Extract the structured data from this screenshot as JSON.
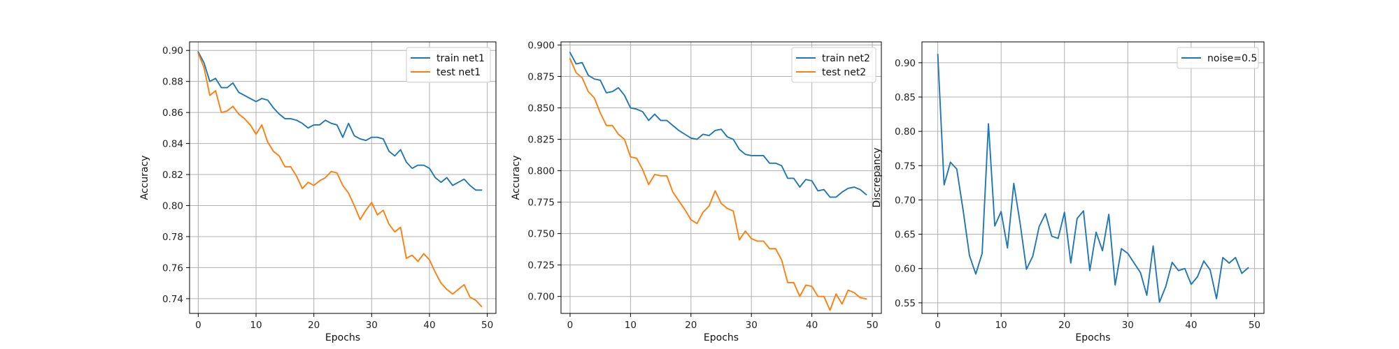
{
  "chart_data": [
    {
      "type": "line",
      "xlabel": "Epochs",
      "ylabel": "Accuracy",
      "xlim": [
        -1.5,
        51.5
      ],
      "ylim": [
        0.7305,
        0.9055
      ],
      "xticks": [
        0,
        10,
        20,
        30,
        40,
        50
      ],
      "yticks": [
        0.74,
        0.76,
        0.78,
        0.8,
        0.82,
        0.84,
        0.86,
        0.88,
        0.9
      ],
      "ytick_labels": [
        "0.74",
        "0.76",
        "0.78",
        "0.80",
        "0.82",
        "0.84",
        "0.86",
        "0.88",
        "0.90"
      ],
      "grid": true,
      "legend_position": "top-right",
      "series": [
        {
          "name": "train net1",
          "color": "#1f77b4",
          "values": [
            0.899,
            0.892,
            0.88,
            0.882,
            0.876,
            0.876,
            0.879,
            0.873,
            0.871,
            0.869,
            0.867,
            0.869,
            0.868,
            0.863,
            0.859,
            0.856,
            0.856,
            0.855,
            0.853,
            0.85,
            0.852,
            0.852,
            0.855,
            0.853,
            0.852,
            0.844,
            0.853,
            0.845,
            0.843,
            0.842,
            0.844,
            0.844,
            0.843,
            0.835,
            0.832,
            0.836,
            0.828,
            0.824,
            0.826,
            0.826,
            0.824,
            0.818,
            0.815,
            0.818,
            0.813,
            0.815,
            0.817,
            0.813,
            0.81,
            0.81
          ]
        },
        {
          "name": "test net1",
          "color": "#ff7f0e",
          "values": [
            0.898,
            0.889,
            0.871,
            0.874,
            0.86,
            0.861,
            0.864,
            0.859,
            0.856,
            0.852,
            0.846,
            0.852,
            0.841,
            0.835,
            0.832,
            0.825,
            0.825,
            0.819,
            0.811,
            0.815,
            0.813,
            0.816,
            0.818,
            0.822,
            0.821,
            0.813,
            0.808,
            0.8,
            0.791,
            0.797,
            0.802,
            0.794,
            0.797,
            0.788,
            0.783,
            0.786,
            0.766,
            0.768,
            0.764,
            0.769,
            0.765,
            0.757,
            0.75,
            0.746,
            0.743,
            0.746,
            0.749,
            0.741,
            0.739,
            0.735
          ]
        }
      ]
    },
    {
      "type": "line",
      "xlabel": "Epochs",
      "ylabel": "Accuracy",
      "xlim": [
        -1.5,
        51.5
      ],
      "ylim": [
        0.6865,
        0.9025
      ],
      "xticks": [
        0,
        10,
        20,
        30,
        40,
        50
      ],
      "yticks": [
        0.7,
        0.725,
        0.75,
        0.775,
        0.8,
        0.825,
        0.85,
        0.875,
        0.9
      ],
      "ytick_labels": [
        "0.700",
        "0.725",
        "0.750",
        "0.775",
        "0.800",
        "0.825",
        "0.850",
        "0.875",
        "0.900"
      ],
      "grid": true,
      "legend_position": "top-right",
      "series": [
        {
          "name": "train net2",
          "color": "#1f77b4",
          "values": [
            0.894,
            0.885,
            0.886,
            0.876,
            0.873,
            0.872,
            0.862,
            0.863,
            0.866,
            0.86,
            0.85,
            0.849,
            0.847,
            0.84,
            0.845,
            0.84,
            0.84,
            0.836,
            0.832,
            0.829,
            0.826,
            0.825,
            0.829,
            0.828,
            0.832,
            0.833,
            0.827,
            0.825,
            0.817,
            0.813,
            0.812,
            0.812,
            0.812,
            0.806,
            0.806,
            0.804,
            0.794,
            0.794,
            0.787,
            0.793,
            0.792,
            0.784,
            0.785,
            0.779,
            0.779,
            0.783,
            0.786,
            0.787,
            0.785,
            0.781
          ]
        },
        {
          "name": "test net2",
          "color": "#ff7f0e",
          "values": [
            0.889,
            0.878,
            0.874,
            0.863,
            0.858,
            0.846,
            0.836,
            0.836,
            0.829,
            0.825,
            0.811,
            0.81,
            0.801,
            0.789,
            0.797,
            0.796,
            0.796,
            0.783,
            0.776,
            0.769,
            0.761,
            0.758,
            0.767,
            0.772,
            0.784,
            0.774,
            0.77,
            0.768,
            0.745,
            0.752,
            0.746,
            0.744,
            0.744,
            0.738,
            0.738,
            0.729,
            0.711,
            0.711,
            0.7,
            0.709,
            0.708,
            0.7,
            0.7,
            0.689,
            0.702,
            0.694,
            0.705,
            0.703,
            0.699,
            0.698
          ]
        }
      ]
    },
    {
      "type": "line",
      "xlabel": "Epochs",
      "ylabel": "Discrepancy",
      "xlim": [
        -2.5,
        51.5
      ],
      "ylim": [
        0.5346,
        0.9304
      ],
      "xticks": [
        0,
        10,
        20,
        30,
        40,
        50
      ],
      "yticks": [
        0.55,
        0.6,
        0.65,
        0.7,
        0.75,
        0.8,
        0.85,
        0.9
      ],
      "ytick_labels": [
        "0.55",
        "0.60",
        "0.65",
        "0.70",
        "0.75",
        "0.80",
        "0.85",
        "0.90"
      ],
      "grid": true,
      "legend_position": "top-right",
      "series": [
        {
          "name": "noise=0.5",
          "color": "#1f77b4",
          "values": [
            0.912,
            0.722,
            0.755,
            0.745,
            0.685,
            0.619,
            0.592,
            0.622,
            0.811,
            0.662,
            0.683,
            0.63,
            0.724,
            0.666,
            0.599,
            0.618,
            0.661,
            0.68,
            0.647,
            0.644,
            0.682,
            0.608,
            0.673,
            0.684,
            0.597,
            0.653,
            0.626,
            0.679,
            0.576,
            0.629,
            0.622,
            0.608,
            0.594,
            0.561,
            0.633,
            0.551,
            0.574,
            0.609,
            0.597,
            0.6,
            0.577,
            0.588,
            0.611,
            0.598,
            0.556,
            0.616,
            0.608,
            0.616,
            0.593,
            0.601
          ]
        }
      ]
    }
  ]
}
